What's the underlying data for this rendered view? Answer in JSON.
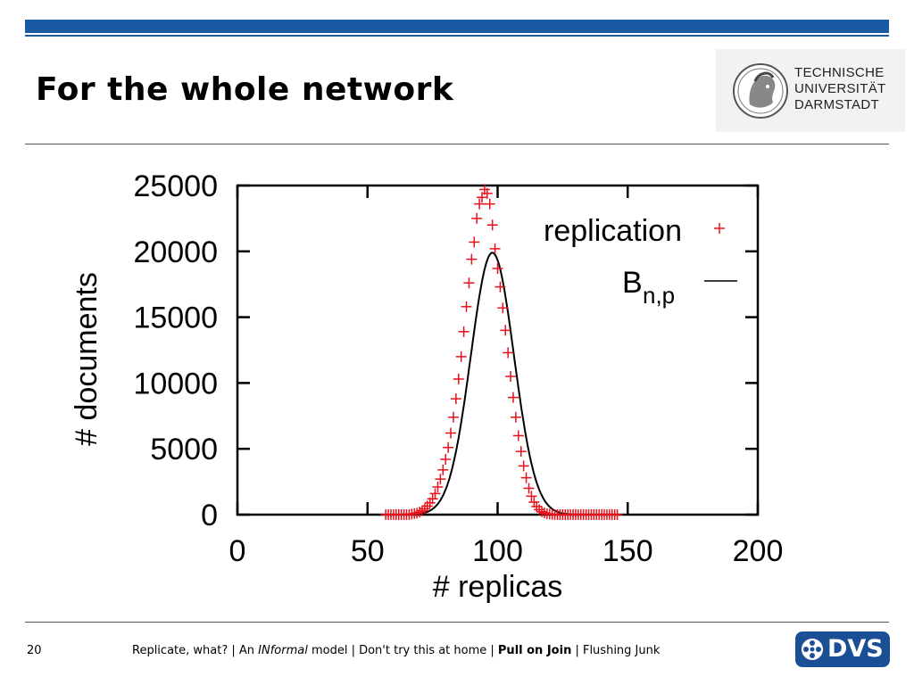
{
  "slide": {
    "title": "For the whole network",
    "page_number": "20"
  },
  "logo": {
    "line1": "TECHNISCHE",
    "line2": "UNIVERSITÄT",
    "line3": "DARMSTADT",
    "dvs": "DVS"
  },
  "footer": {
    "part1": "Replicate, what? | An ",
    "part2_italic": "INformal",
    "part3": " model | Don't try this at home | ",
    "part4_bold": "Pull on Join",
    "part5": " | Flushing Junk"
  },
  "colors": {
    "brand_blue": "#1a5aa3",
    "replication_points": "#e8101a",
    "binomial_line": "#000000"
  },
  "chart_data": {
    "type": "scatter",
    "xlabel": "# replicas",
    "ylabel": "# documents",
    "xlim": [
      0,
      200
    ],
    "ylim": [
      0,
      25000
    ],
    "x_ticks": [
      "0",
      "50",
      "100",
      "150",
      "200"
    ],
    "y_ticks": [
      "0",
      "5000",
      "10000",
      "15000",
      "20000",
      "25000"
    ],
    "legend_position": "top-right",
    "series": [
      {
        "name": "replication",
        "style": "points",
        "marker": "plus",
        "x": [
          57,
          58,
          59,
          60,
          61,
          62,
          63,
          64,
          65,
          66,
          67,
          68,
          69,
          70,
          71,
          72,
          73,
          74,
          75,
          76,
          77,
          78,
          79,
          80,
          81,
          82,
          83,
          84,
          85,
          86,
          87,
          88,
          89,
          90,
          91,
          92,
          93,
          94,
          95,
          96,
          97,
          98,
          99,
          100,
          101,
          102,
          103,
          104,
          105,
          106,
          107,
          108,
          109,
          110,
          111,
          112,
          113,
          114,
          115,
          116,
          117,
          118,
          119,
          120,
          121,
          122,
          123,
          124,
          125,
          126,
          127,
          128,
          129,
          130,
          131,
          132,
          133,
          134,
          135,
          136,
          137,
          138,
          139,
          140,
          141,
          142,
          143,
          144,
          145,
          146
        ],
        "y": [
          0,
          0,
          0,
          0,
          0,
          0,
          0,
          0,
          0,
          0,
          50,
          80,
          120,
          200,
          300,
          450,
          650,
          900,
          1200,
          1600,
          2100,
          2700,
          3400,
          4200,
          5100,
          6200,
          7400,
          8800,
          10300,
          12000,
          13900,
          15800,
          17600,
          19400,
          20700,
          22500,
          23600,
          24100,
          24700,
          24400,
          23600,
          22000,
          20200,
          18700,
          17300,
          15700,
          14000,
          12300,
          10500,
          8900,
          7400,
          6000,
          4800,
          3700,
          2800,
          2000,
          1400,
          950,
          620,
          380,
          220,
          130,
          70,
          40,
          20,
          0,
          0,
          0,
          0,
          0,
          0,
          0,
          0,
          0,
          0,
          0,
          0,
          0,
          0,
          0,
          0,
          0,
          0,
          0,
          0,
          0,
          0,
          0,
          0,
          0
        ]
      },
      {
        "name": "B",
        "name_sub": "n,p",
        "style": "line",
        "mean": 98,
        "sd": 8.3,
        "peak": 19900,
        "x_range": [
          55,
          148
        ]
      }
    ]
  }
}
